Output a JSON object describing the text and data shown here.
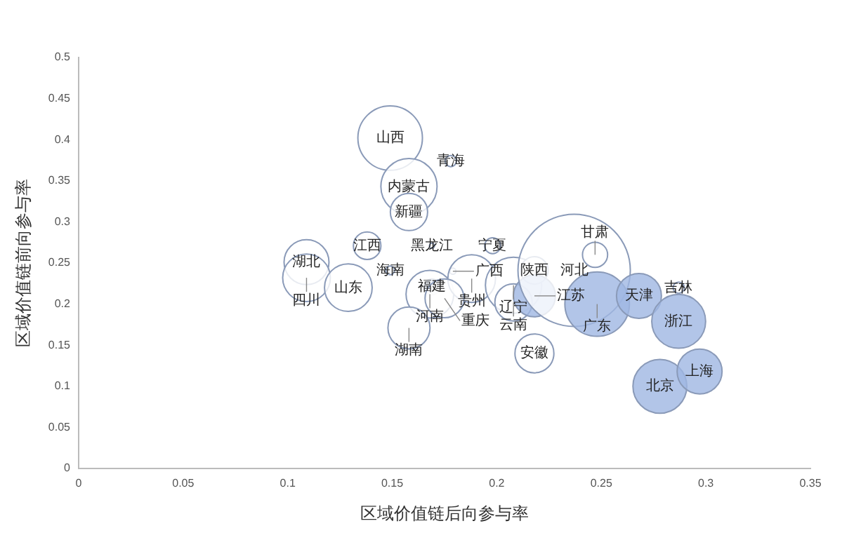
{
  "chart_data": {
    "type": "bubble",
    "xlabel": "区域价值链后向参与率",
    "ylabel": "区域价值链前向参与率",
    "xlim": [
      0,
      0.35
    ],
    "xticks": [
      0,
      0.05,
      0.1,
      0.15,
      0.2,
      0.25,
      0.3,
      0.35
    ],
    "ylim": [
      0,
      0.5
    ],
    "yticks": [
      0,
      0.05,
      0.1,
      0.15,
      0.2,
      0.25,
      0.3,
      0.35,
      0.4,
      0.45,
      0.5
    ],
    "grid": false,
    "legend": false,
    "x": [
      0.149,
      0.178,
      0.158,
      0.158,
      0.169,
      0.109,
      0.109,
      0.129,
      0.138,
      0.149,
      0.169,
      0.168,
      0.179,
      0.188,
      0.175,
      0.158,
      0.198,
      0.208,
      0.218,
      0.208,
      0.218,
      0.237,
      0.247,
      0.248,
      0.268,
      0.287,
      0.287,
      0.218,
      0.278,
      0.297
    ],
    "values": [
      0.402,
      0.374,
      0.343,
      0.312,
      0.271,
      0.251,
      0.232,
      0.22,
      0.271,
      0.241,
      0.221,
      0.212,
      0.24,
      0.231,
      0.207,
      0.171,
      0.271,
      0.223,
      0.241,
      0.202,
      0.21,
      0.241,
      0.26,
      0.2,
      0.21,
      0.22,
      0.179,
      0.14,
      0.1,
      0.118
    ],
    "sizes": [
      0.33,
      0.01,
      0.25,
      0.11,
      0.002,
      0.16,
      0.18,
      0.18,
      0.06,
      0.006,
      0.02,
      0.18,
      0.003,
      0.18,
      0.12,
      0.14,
      0.02,
      0.25,
      0.06,
      0.11,
      0.14,
      1,
      0.05,
      0.33,
      0.16,
      0.01,
      0.23,
      0.12,
      0.23,
      0.16
    ],
    "colors": [
      "#ffffff",
      "#ffffff",
      "#ffffff",
      "#ffffff",
      "#ffffff",
      "#ffffff",
      "#ffffff",
      "#ffffff",
      "#ffffff",
      "#ffffff",
      "#9fb6e2",
      "#ffffff",
      "#ffffff",
      "#ffffff",
      "#ffffff",
      "#ffffff",
      "#ffffff",
      "#ffffff",
      "#ffffff",
      "#ffffff",
      "#9fb6e2",
      "#ffffff",
      "#ffffff",
      "#9fb6e2",
      "#9fb6e2",
      "#ffffff",
      "#9fb6e2",
      "#ffffff",
      "#9fb6e2",
      "#9fb6e2"
    ],
    "annotations": [
      {
        "text": "山西",
        "x": 0.149,
        "y": 0.402
      },
      {
        "text": "青海",
        "x": 0.178,
        "y": 0.374
      },
      {
        "text": "内蒙古",
        "x": 0.158,
        "y": 0.343
      },
      {
        "text": "新疆",
        "x": 0.158,
        "y": 0.312
      },
      {
        "text": "黑龙江",
        "x": 0.169,
        "y": 0.271
      },
      {
        "text": "湖北",
        "x": 0.109,
        "y": 0.251
      },
      {
        "text": "四川",
        "x": 0.109,
        "y": 0.232
      },
      {
        "text": "山东",
        "x": 0.129,
        "y": 0.22
      },
      {
        "text": "江西",
        "x": 0.138,
        "y": 0.271
      },
      {
        "text": "海南",
        "x": 0.149,
        "y": 0.241
      },
      {
        "text": "福建",
        "x": 0.169,
        "y": 0.221
      },
      {
        "text": "河南",
        "x": 0.168,
        "y": 0.212
      },
      {
        "text": "广西",
        "x": 0.179,
        "y": 0.24
      },
      {
        "text": "贵州",
        "x": 0.188,
        "y": 0.231
      },
      {
        "text": "重庆",
        "x": 0.175,
        "y": 0.207
      },
      {
        "text": "湖南",
        "x": 0.158,
        "y": 0.171
      },
      {
        "text": "宁夏",
        "x": 0.198,
        "y": 0.271
      },
      {
        "text": "辽宁",
        "x": 0.208,
        "y": 0.223
      },
      {
        "text": "陕西",
        "x": 0.218,
        "y": 0.241
      },
      {
        "text": "云南",
        "x": 0.208,
        "y": 0.202
      },
      {
        "text": "江苏",
        "x": 0.218,
        "y": 0.21
      },
      {
        "text": "河北",
        "x": 0.237,
        "y": 0.241
      },
      {
        "text": "甘肃",
        "x": 0.247,
        "y": 0.26
      },
      {
        "text": "广东",
        "x": 0.248,
        "y": 0.2
      },
      {
        "text": "天津",
        "x": 0.268,
        "y": 0.21
      },
      {
        "text": "吉林",
        "x": 0.287,
        "y": 0.22
      },
      {
        "text": "浙江",
        "x": 0.287,
        "y": 0.179
      },
      {
        "text": "安徽",
        "x": 0.218,
        "y": 0.14
      },
      {
        "text": "北京",
        "x": 0.278,
        "y": 0.1
      },
      {
        "text": "上海",
        "x": 0.297,
        "y": 0.118
      }
    ]
  }
}
